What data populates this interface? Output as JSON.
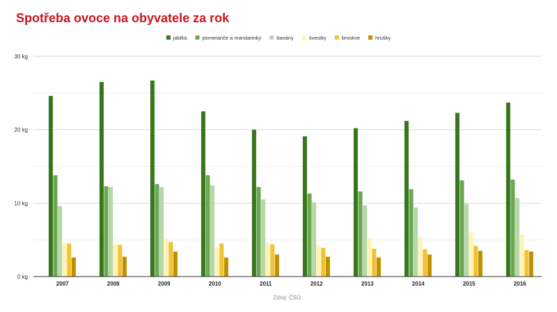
{
  "title": "Spotřeba ovoce na obyvatele za rok",
  "source": "Zdroj: ČSÚ",
  "chart_data": {
    "type": "bar",
    "categories": [
      "2007",
      "2008",
      "2009",
      "2010",
      "2011",
      "2012",
      "2013",
      "2014",
      "2015",
      "2016"
    ],
    "series": [
      {
        "name": "jablka",
        "color": "#38761d",
        "values": [
          24.6,
          26.5,
          26.7,
          22.5,
          20.0,
          19.1,
          20.2,
          21.2,
          22.3,
          23.7
        ]
      },
      {
        "name": "pomeranče a mandarinky",
        "color": "#6aa84f",
        "values": [
          13.8,
          12.3,
          12.6,
          13.8,
          12.2,
          11.3,
          11.6,
          11.9,
          13.1,
          13.2
        ]
      },
      {
        "name": "banány",
        "color": "#b6d7a8",
        "values": [
          9.6,
          12.2,
          12.2,
          12.4,
          10.5,
          10.1,
          9.7,
          9.4,
          9.9,
          10.7
        ]
      },
      {
        "name": "švestky",
        "color": "#fff2b3",
        "values": [
          4.6,
          4.4,
          5.2,
          4.0,
          4.6,
          4.3,
          5.2,
          5.4,
          6.0,
          5.7
        ]
      },
      {
        "name": "broskve",
        "color": "#f1c232",
        "values": [
          4.5,
          4.3,
          4.7,
          4.5,
          4.4,
          3.9,
          3.8,
          3.7,
          4.2,
          3.6
        ]
      },
      {
        "name": "hrušky",
        "color": "#bf9000",
        "values": [
          2.6,
          2.7,
          3.4,
          2.6,
          3.0,
          2.7,
          2.6,
          3.0,
          3.5,
          3.4
        ]
      }
    ],
    "y_ticks": [
      "0 kg",
      "10 kg",
      "20 kg",
      "30 kg"
    ],
    "y_tick_values": [
      0,
      10,
      20,
      30
    ],
    "ylim": [
      0,
      30
    ],
    "grid": true,
    "legend_position": "top-center"
  }
}
